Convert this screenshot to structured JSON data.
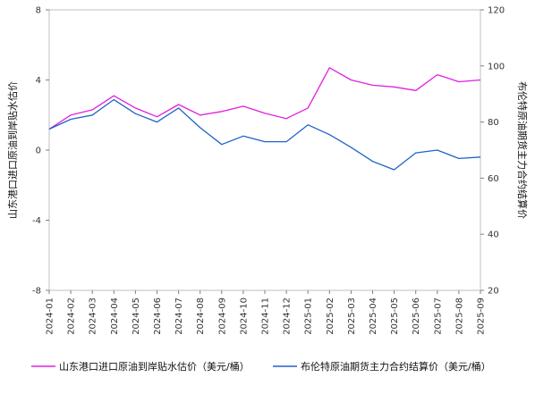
{
  "chart_data": {
    "type": "line",
    "title": "",
    "x": [
      "2024-01",
      "2024-02",
      "2024-03",
      "2024-04",
      "2024-05",
      "2024-06",
      "2024-07",
      "2024-08",
      "2024-09",
      "2024-10",
      "2024-11",
      "2024-12",
      "2025-01",
      "2025-02",
      "2025-03",
      "2025-04",
      "2025-05",
      "2025-06",
      "2025-07",
      "2025-08",
      "2025-09"
    ],
    "x_tick_labels": [
      "2024-01",
      "2024-02",
      "2024-03",
      "2024-04",
      "2024-05",
      "2024-06",
      "2024-07",
      "2024-08",
      "2024-09",
      "2024-10",
      "2024-11",
      "2024-12",
      "2025-01",
      "2025-02",
      "2025-03",
      "2025-04",
      "2025-05",
      "2025-06",
      "2025-07",
      "2025-08",
      "2025-09"
    ],
    "ylabel_left": "山东港口进口原油到岸贴水估价",
    "ylabel_right": "布伦特原油期货主力合约结算价",
    "ylim_left": [
      -8,
      8
    ],
    "yticks_left": [
      -8,
      -4,
      0,
      4,
      8
    ],
    "ylim_right": [
      20,
      120
    ],
    "yticks_right": [
      20,
      40,
      60,
      80,
      100,
      120
    ],
    "grid": false,
    "legend_position": "bottom",
    "series": [
      {
        "name": "山东港口进口原油到岸贴水估价（美元/桶）",
        "axis": "left",
        "color": "#e020e0",
        "values": [
          1.2,
          2.0,
          2.3,
          3.1,
          2.4,
          1.9,
          2.6,
          2.0,
          2.2,
          2.5,
          2.1,
          1.8,
          2.4,
          4.7,
          4.0,
          3.7,
          3.6,
          3.4,
          4.3,
          3.9,
          4.0
        ]
      },
      {
        "name": "布伦特原油期货主力合约结算价（美元/桶）",
        "axis": "right",
        "color": "#1e64c8",
        "values": [
          77.5,
          81.0,
          82.5,
          88.0,
          83.0,
          80.0,
          85.0,
          78.0,
          72.0,
          75.0,
          73.0,
          73.0,
          79.0,
          75.5,
          71.0,
          66.0,
          63.0,
          69.0,
          70.0,
          67.0,
          67.5
        ]
      }
    ]
  },
  "legend": {
    "items": [
      {
        "label": "山东港口进口原油到岸贴水估价（美元/桶）",
        "color": "#e020e0"
      },
      {
        "label": "布伦特原油期货主力合约结算价（美元/桶）",
        "color": "#1e64c8"
      }
    ]
  }
}
